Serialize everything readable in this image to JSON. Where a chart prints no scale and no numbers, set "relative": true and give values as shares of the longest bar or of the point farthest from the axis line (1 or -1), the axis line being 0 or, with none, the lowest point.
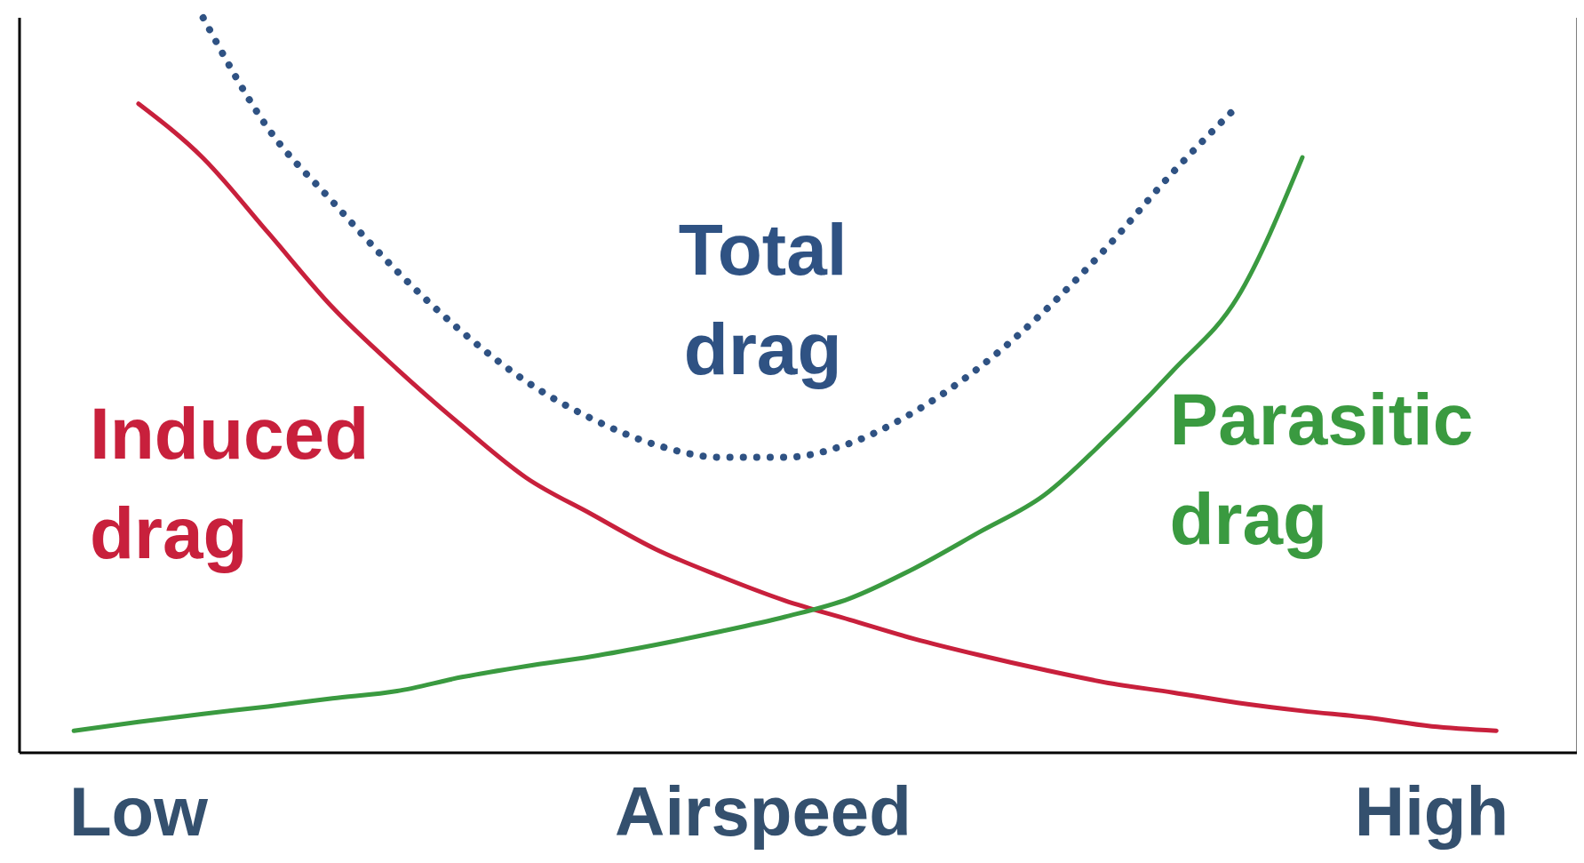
{
  "chart_data": {
    "type": "line",
    "relative": true,
    "xlabel": "Airspeed",
    "categories": [
      null,
      null,
      "Low",
      null,
      null,
      null,
      null,
      null,
      null,
      null,
      null,
      null,
      null,
      null,
      null,
      null,
      null,
      null,
      null,
      null,
      null,
      null,
      "High",
      null,
      null
    ],
    "marker": "none",
    "series": [
      {
        "name": "Induced drag",
        "color": "#c8203c",
        "line_style": "solid",
        "values": [
          null,
          null,
          0.883,
          0.809,
          0.708,
          0.606,
          0.522,
          0.445,
          0.374,
          0.325,
          0.277,
          0.24,
          0.207,
          0.181,
          0.155,
          0.133,
          0.113,
          0.095,
          0.082,
          0.068,
          0.057,
          0.048,
          0.036,
          0.03,
          null
        ]
      },
      {
        "name": "Total drag",
        "color": "#2f5283",
        "line_style": "dotted",
        "values": [
          null,
          null,
          null,
          1,
          0.85,
          0.75,
          0.655,
          0.573,
          0.505,
          0.455,
          0.419,
          0.402,
          0.402,
          0.421,
          0.464,
          0.524,
          0.6,
          0.69,
          0.79,
          0.88,
          null,
          null,
          null,
          null,
          null
        ]
      },
      {
        "name": "Parasitic drag",
        "color": "#3a9a40",
        "line_style": "solid",
        "values": [
          null,
          0.03,
          0.042,
          0.053,
          0.063,
          0.074,
          0.084,
          0.103,
          0.118,
          0.131,
          0.147,
          0.165,
          0.185,
          0.21,
          0.251,
          0.3,
          0.35,
          0.43,
          0.52,
          0.62,
          0.81,
          null,
          null,
          null,
          null
        ]
      }
    ]
  }
}
